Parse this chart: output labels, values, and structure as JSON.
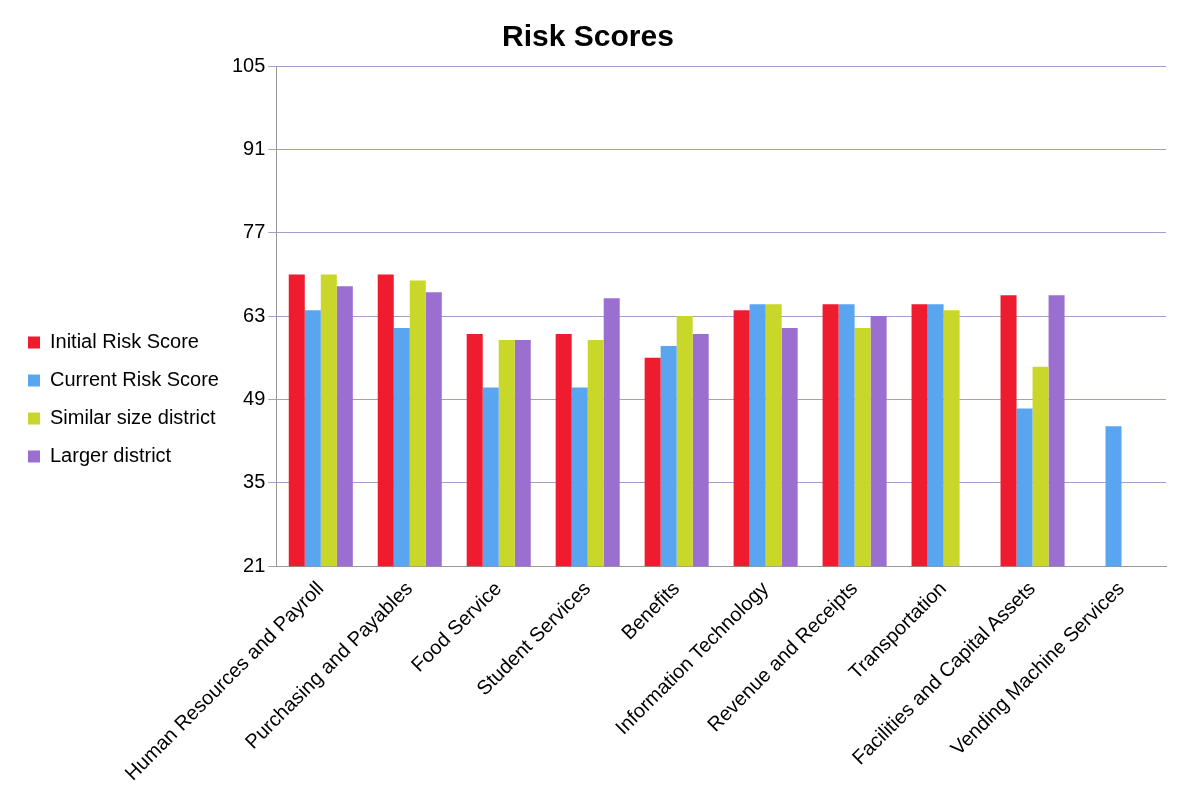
{
  "chart_data": {
    "type": "bar",
    "title": "Risk Scores",
    "categories": [
      "Human Resources and Payroll",
      "Purchasing and Payables",
      "Food Service",
      "Student Services",
      "Benefits",
      "Information Technology",
      "Revenue and Receipts",
      "Transportation",
      "Facilities and Capital Assets",
      "Vending Machine Services"
    ],
    "series": [
      {
        "name": "Initial Risk Score",
        "color": "#ee1c2e",
        "values": [
          70,
          70,
          60,
          60,
          56,
          64,
          65,
          65,
          66.5,
          null
        ]
      },
      {
        "name": "Current Risk Score",
        "color": "#5aa5f0",
        "values": [
          64,
          61,
          51,
          51,
          58,
          65,
          65,
          65,
          47.5,
          44.5
        ]
      },
      {
        "name": "Similar size district",
        "color": "#c9d62a",
        "values": [
          70,
          69,
          59,
          59,
          63,
          65,
          61,
          64,
          54.5,
          null
        ]
      },
      {
        "name": "Larger district",
        "color": "#9b6fd0",
        "values": [
          68,
          67,
          59,
          66,
          60,
          61,
          63,
          null,
          66.5,
          null
        ]
      }
    ],
    "ylim": [
      21,
      105
    ],
    "yticks": [
      21,
      35,
      49,
      63,
      77,
      91,
      105
    ],
    "grid": "y",
    "legend": "left"
  }
}
